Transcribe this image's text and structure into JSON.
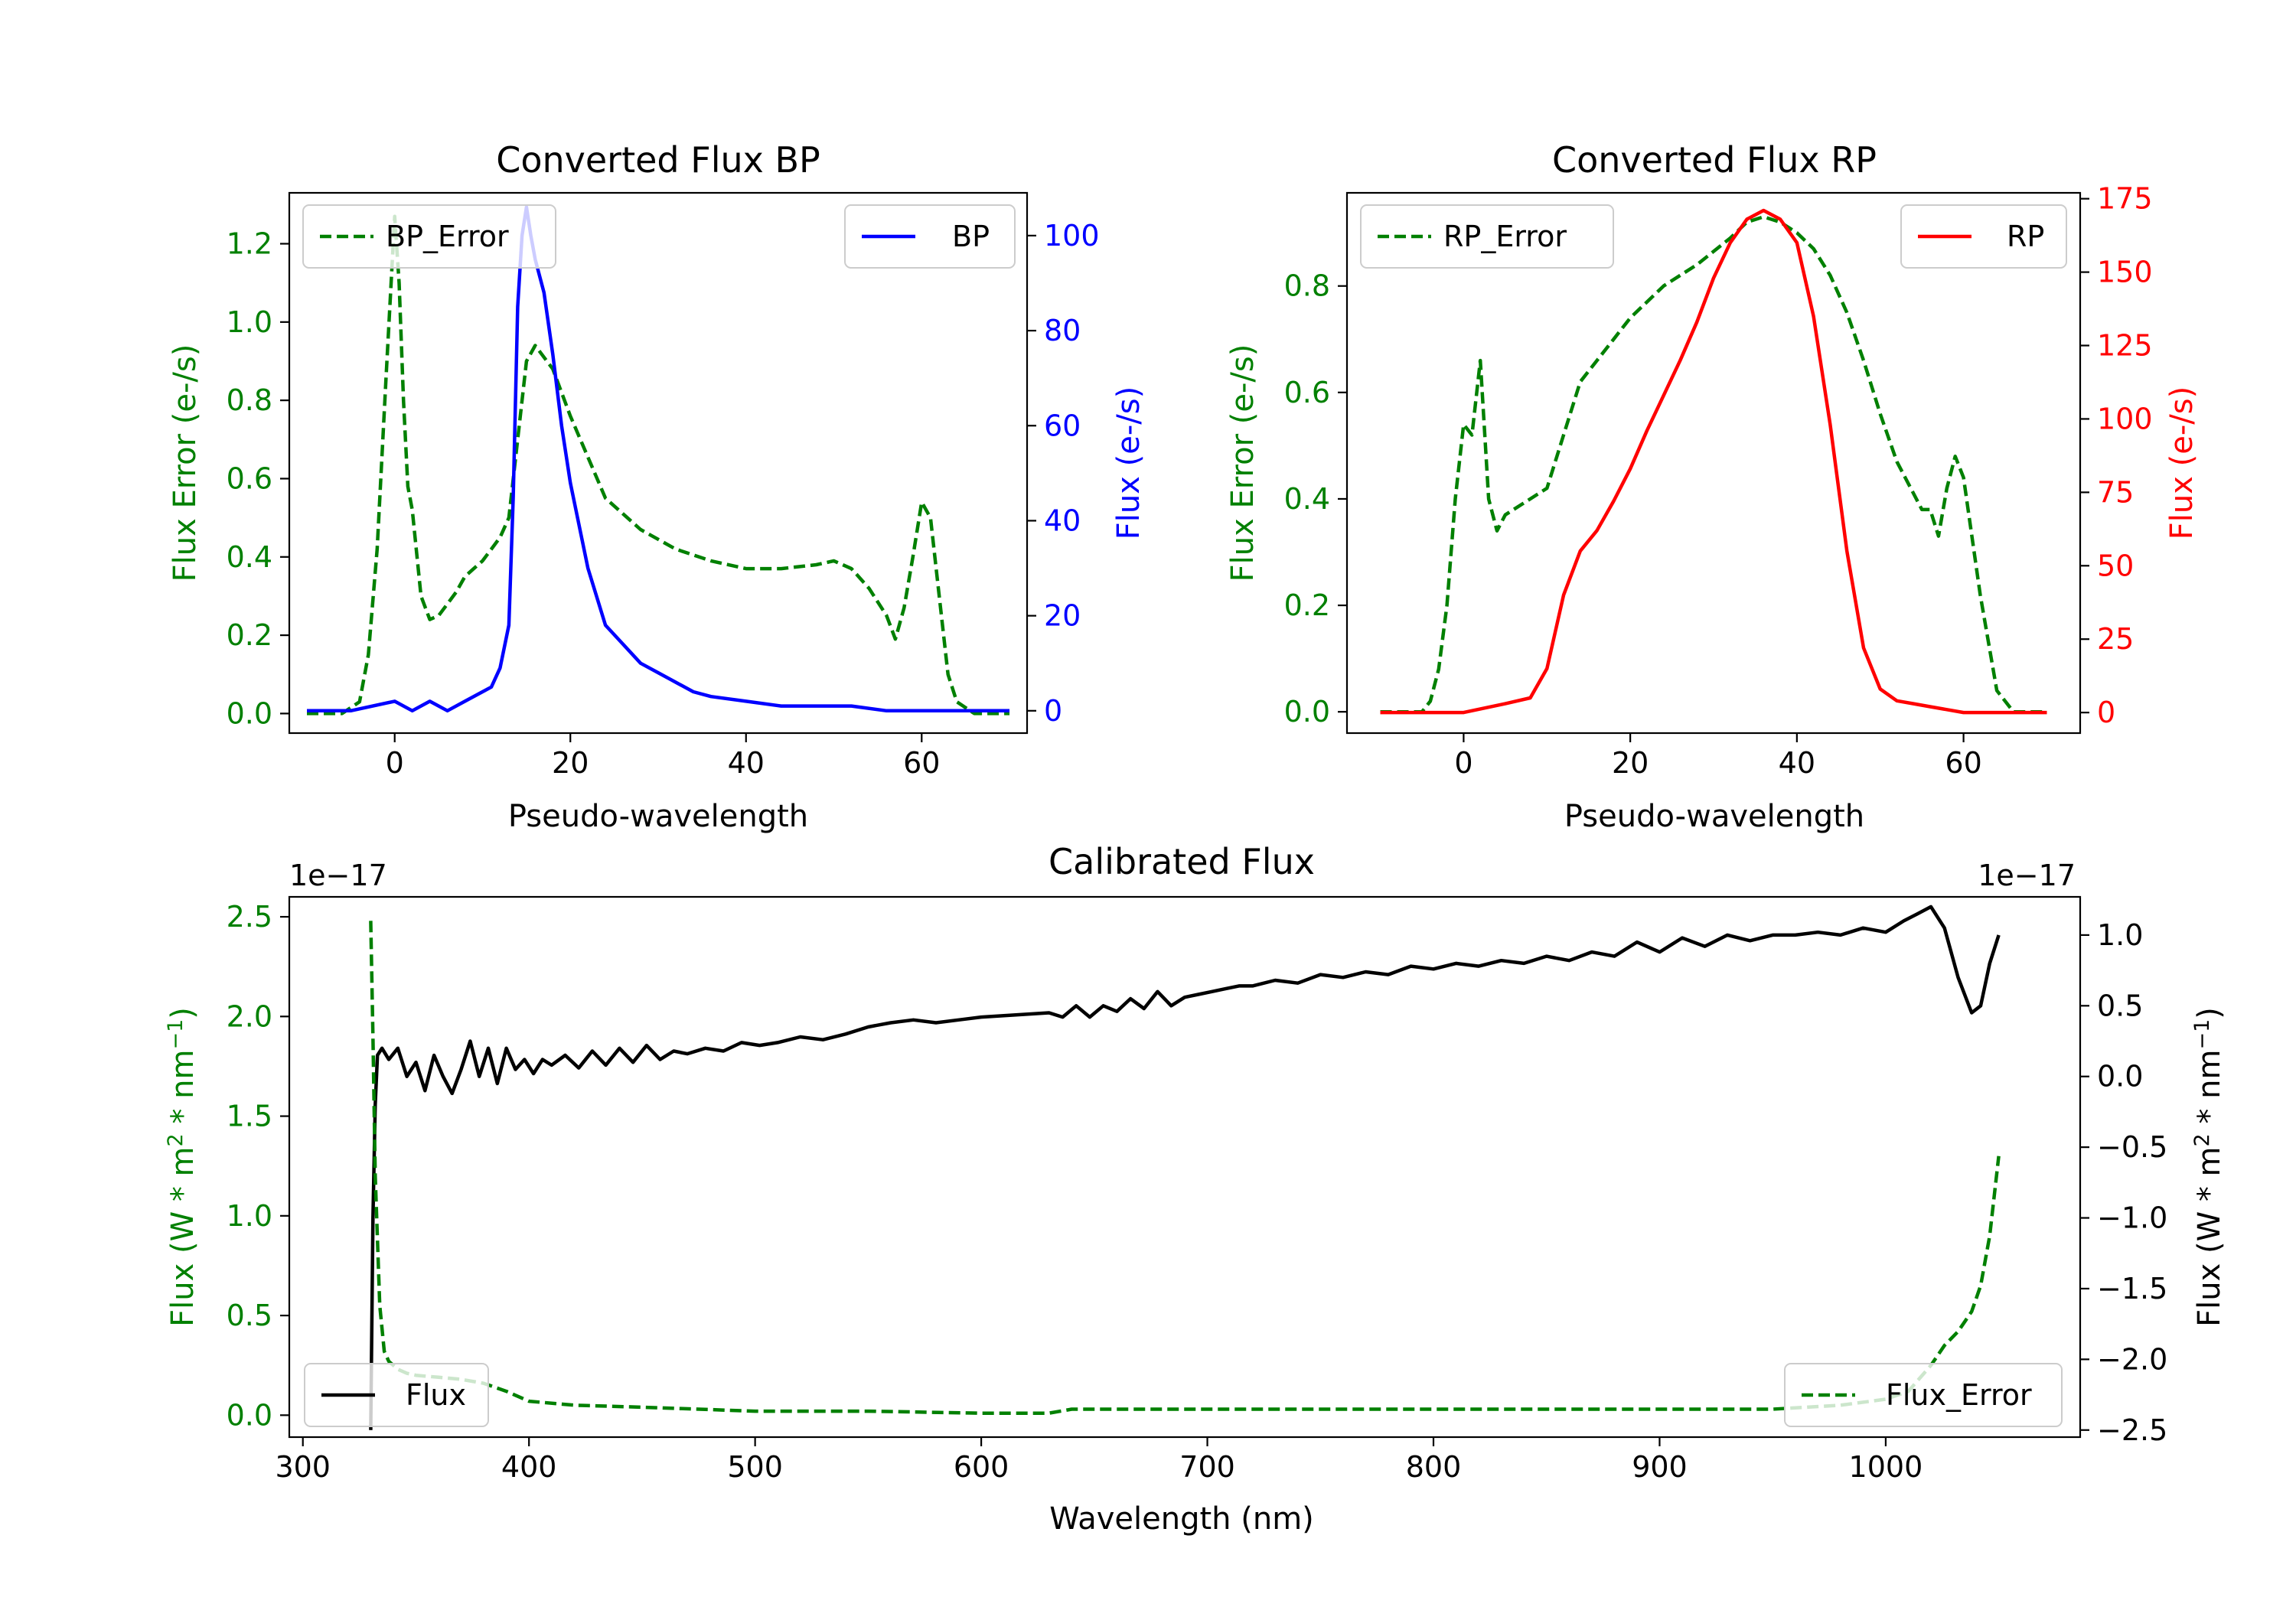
{
  "colors": {
    "green": "#008000",
    "blue": "#0000ff",
    "red": "#ff0000",
    "black": "#000000"
  },
  "chart_data": [
    {
      "id": "bp",
      "type": "line",
      "title": "Converted Flux BP",
      "xlabel": "Pseudo-wavelength",
      "ylabel_left": "Flux Error (e-/s)",
      "ylabel_right": "Flux (e-/s)",
      "xlim": [
        -12,
        72
      ],
      "ylim_left": [
        -0.05,
        1.33
      ],
      "ylim_right": [
        -4.7,
        109
      ],
      "xticks": [
        0,
        20,
        40,
        60
      ],
      "yticks_left": [
        0.0,
        0.2,
        0.4,
        0.6,
        0.8,
        1.0,
        1.2
      ],
      "yticks_left_labels": [
        "0.0",
        "0.2",
        "0.4",
        "0.6",
        "0.8",
        "1.0",
        "1.2"
      ],
      "yticks_right": [
        0,
        20,
        40,
        60,
        80,
        100
      ],
      "yticks_right_labels": [
        "0",
        "20",
        "40",
        "60",
        "80",
        "100"
      ],
      "series": [
        {
          "name": "BP_Error",
          "axis": "left",
          "color": "#008000",
          "style": "dashed",
          "x": [
            -10,
            -6,
            -4,
            -3,
            -2,
            -1,
            0,
            0.5,
            1,
            1.5,
            2,
            3,
            4,
            5,
            6,
            7,
            8,
            9,
            10,
            11,
            12,
            13,
            14,
            15,
            16,
            18,
            20,
            24,
            28,
            32,
            36,
            40,
            44,
            48,
            50,
            52,
            54,
            56,
            57,
            58,
            59,
            60,
            61,
            62,
            63,
            64,
            66,
            70
          ],
          "values": [
            0.0,
            0.0,
            0.03,
            0.15,
            0.42,
            0.85,
            1.27,
            1.1,
            0.8,
            0.58,
            0.52,
            0.3,
            0.24,
            0.25,
            0.28,
            0.31,
            0.35,
            0.37,
            0.39,
            0.42,
            0.45,
            0.5,
            0.7,
            0.9,
            0.94,
            0.88,
            0.76,
            0.55,
            0.47,
            0.42,
            0.39,
            0.37,
            0.37,
            0.38,
            0.39,
            0.37,
            0.32,
            0.25,
            0.19,
            0.27,
            0.4,
            0.54,
            0.5,
            0.3,
            0.1,
            0.03,
            0.0,
            0.0
          ]
        },
        {
          "name": "BP",
          "axis": "right",
          "color": "#0000ff",
          "style": "solid",
          "x": [
            -10,
            -5,
            0,
            2,
            4,
            6,
            8,
            10,
            11,
            12,
            13,
            13.5,
            14,
            14.5,
            15,
            15.5,
            16,
            17,
            18,
            19,
            20,
            22,
            24,
            26,
            28,
            30,
            32,
            34,
            36,
            40,
            44,
            48,
            52,
            56,
            60,
            64,
            70
          ],
          "values": [
            0,
            0,
            2,
            0,
            2,
            0,
            2,
            4,
            5,
            9,
            18,
            45,
            85,
            100,
            106,
            100,
            95,
            88,
            75,
            60,
            48,
            30,
            18,
            14,
            10,
            8,
            6,
            4,
            3,
            2,
            1,
            1,
            1,
            0,
            0,
            0,
            0
          ]
        }
      ],
      "legend": [
        {
          "label": "BP_Error",
          "position": "upper-left"
        },
        {
          "label": "BP",
          "position": "upper-right"
        }
      ]
    },
    {
      "id": "rp",
      "type": "line",
      "title": "Converted Flux RP",
      "xlabel": "Pseudo-wavelength",
      "ylabel_left": "Flux Error (e-/s)",
      "ylabel_right": "Flux (e-/s)",
      "xlim": [
        -14,
        74
      ],
      "ylim_left": [
        -0.04,
        0.975
      ],
      "ylim_right": [
        -7,
        177
      ],
      "xticks": [
        0,
        20,
        40,
        60
      ],
      "yticks_left": [
        0.0,
        0.2,
        0.4,
        0.6,
        0.8
      ],
      "yticks_left_labels": [
        "0.0",
        "0.2",
        "0.4",
        "0.6",
        "0.8"
      ],
      "yticks_right": [
        0,
        25,
        50,
        75,
        100,
        125,
        150,
        175
      ],
      "yticks_right_labels": [
        "0",
        "25",
        "50",
        "75",
        "100",
        "125",
        "150",
        "175"
      ],
      "series": [
        {
          "name": "RP_Error",
          "axis": "left",
          "color": "#008000",
          "style": "dashed",
          "x": [
            -10,
            -5,
            -4,
            -3,
            -2,
            -1,
            0,
            1,
            2,
            3,
            4,
            5,
            7,
            10,
            12,
            14,
            16,
            18,
            20,
            24,
            28,
            32,
            34,
            36,
            38,
            40,
            42,
            44,
            46,
            48,
            50,
            52,
            54,
            55,
            56,
            57,
            58,
            59,
            60,
            62,
            64,
            66,
            70
          ],
          "values": [
            0.0,
            0.0,
            0.02,
            0.08,
            0.2,
            0.4,
            0.54,
            0.52,
            0.66,
            0.4,
            0.34,
            0.37,
            0.39,
            0.42,
            0.52,
            0.62,
            0.66,
            0.7,
            0.74,
            0.8,
            0.84,
            0.89,
            0.92,
            0.93,
            0.92,
            0.9,
            0.87,
            0.82,
            0.75,
            0.66,
            0.56,
            0.47,
            0.41,
            0.38,
            0.38,
            0.33,
            0.42,
            0.48,
            0.44,
            0.22,
            0.04,
            0.0,
            0.0
          ]
        },
        {
          "name": "RP",
          "axis": "right",
          "color": "#ff0000",
          "style": "solid",
          "x": [
            -10,
            -5,
            0,
            5,
            8,
            10,
            12,
            14,
            16,
            18,
            20,
            22,
            24,
            26,
            28,
            30,
            32,
            34,
            36,
            38,
            40,
            42,
            44,
            46,
            48,
            50,
            52,
            54,
            56,
            60,
            65,
            70
          ],
          "values": [
            0,
            0,
            0,
            3,
            5,
            15,
            40,
            55,
            62,
            72,
            83,
            96,
            108,
            120,
            133,
            148,
            160,
            168,
            171,
            168,
            160,
            135,
            98,
            55,
            22,
            8,
            4,
            3,
            2,
            0,
            0,
            0
          ]
        }
      ],
      "legend": [
        {
          "label": "RP_Error",
          "position": "upper-left"
        },
        {
          "label": "RP",
          "position": "upper-right"
        }
      ]
    },
    {
      "id": "cal",
      "type": "line",
      "title": "Calibrated Flux",
      "xlabel": "Wavelength (nm)",
      "ylabel_left": "Flux (W * m",
      "ylabel_right": "Flux (W * m",
      "ylabel_mid": " * nm",
      "ylabel_sup2": "2",
      "ylabel_supm1": "−1",
      "ylabel_close": ")",
      "offset_left": "1e−17",
      "offset_right": "1e−17",
      "xlim": [
        294,
        1086
      ],
      "ylim_left": [
        -0.11,
        2.6
      ],
      "ylim_right": [
        -2.55,
        1.27
      ],
      "xticks": [
        300,
        400,
        500,
        600,
        700,
        800,
        900,
        1000
      ],
      "yticks_left": [
        0.0,
        0.5,
        1.0,
        1.5,
        2.0,
        2.5
      ],
      "yticks_left_labels": [
        "0.0",
        "0.5",
        "1.0",
        "1.5",
        "2.0",
        "2.5"
      ],
      "yticks_right": [
        -2.5,
        -2.0,
        -1.5,
        -1.0,
        -0.5,
        0.0,
        0.5,
        1.0
      ],
      "yticks_right_labels": [
        "−2.5",
        "−2.0",
        "−1.5",
        "−1.0",
        "−0.5",
        "0.0",
        "0.5",
        "1.0"
      ],
      "series": [
        {
          "name": "Flux",
          "axis": "right",
          "color": "#000000",
          "style": "solid",
          "x": [
            330,
            331,
            332,
            333,
            335,
            338,
            342,
            346,
            350,
            354,
            358,
            362,
            366,
            370,
            374,
            378,
            382,
            386,
            390,
            394,
            398,
            402,
            406,
            410,
            416,
            422,
            428,
            434,
            440,
            446,
            452,
            458,
            464,
            470,
            478,
            486,
            494,
            502,
            510,
            520,
            530,
            540,
            550,
            560,
            570,
            580,
            590,
            600,
            610,
            620,
            630,
            636,
            642,
            648,
            654,
            660,
            666,
            672,
            678,
            684,
            690,
            696,
            702,
            708,
            714,
            720,
            730,
            740,
            750,
            760,
            770,
            780,
            790,
            800,
            810,
            820,
            830,
            840,
            850,
            860,
            870,
            880,
            890,
            900,
            910,
            920,
            930,
            940,
            950,
            960,
            970,
            980,
            990,
            1000,
            1008,
            1014,
            1020,
            1026,
            1032,
            1038,
            1042,
            1046,
            1050
          ],
          "values": [
            -2.5,
            -1.0,
            -0.2,
            0.15,
            0.2,
            0.12,
            0.2,
            0.0,
            0.1,
            -0.1,
            0.15,
            0.0,
            -0.12,
            0.05,
            0.25,
            0.0,
            0.2,
            -0.05,
            0.2,
            0.05,
            0.12,
            0.02,
            0.12,
            0.08,
            0.15,
            0.06,
            0.18,
            0.08,
            0.2,
            0.1,
            0.22,
            0.12,
            0.18,
            0.16,
            0.2,
            0.18,
            0.24,
            0.22,
            0.24,
            0.28,
            0.26,
            0.3,
            0.35,
            0.38,
            0.4,
            0.38,
            0.4,
            0.42,
            0.43,
            0.44,
            0.45,
            0.42,
            0.5,
            0.42,
            0.5,
            0.46,
            0.55,
            0.48,
            0.6,
            0.5,
            0.56,
            0.58,
            0.6,
            0.62,
            0.64,
            0.64,
            0.68,
            0.66,
            0.72,
            0.7,
            0.74,
            0.72,
            0.78,
            0.76,
            0.8,
            0.78,
            0.82,
            0.8,
            0.85,
            0.82,
            0.88,
            0.85,
            0.95,
            0.88,
            0.98,
            0.92,
            1.0,
            0.96,
            1.0,
            1.0,
            1.02,
            1.0,
            1.05,
            1.02,
            1.1,
            1.15,
            1.2,
            1.05,
            0.7,
            0.45,
            0.5,
            0.8,
            1.0
          ]
        },
        {
          "name": "Flux_Error",
          "axis": "left",
          "color": "#008000",
          "style": "dashed",
          "x": [
            330,
            331,
            332,
            334,
            336,
            338,
            342,
            346,
            350,
            360,
            370,
            380,
            390,
            400,
            420,
            450,
            500,
            550,
            600,
            630,
            640,
            650,
            700,
            800,
            900,
            950,
            980,
            1000,
            1010,
            1020,
            1026,
            1032,
            1038,
            1042,
            1046,
            1050
          ],
          "values": [
            2.48,
            1.9,
            1.2,
            0.55,
            0.32,
            0.27,
            0.23,
            0.21,
            0.2,
            0.19,
            0.18,
            0.16,
            0.12,
            0.07,
            0.05,
            0.04,
            0.02,
            0.02,
            0.01,
            0.01,
            0.03,
            0.03,
            0.03,
            0.03,
            0.03,
            0.03,
            0.05,
            0.08,
            0.12,
            0.25,
            0.35,
            0.42,
            0.52,
            0.65,
            0.9,
            1.3
          ]
        }
      ],
      "legend": [
        {
          "label": "Flux",
          "position": "lower-left"
        },
        {
          "label": "Flux_Error",
          "position": "lower-right"
        }
      ]
    }
  ]
}
